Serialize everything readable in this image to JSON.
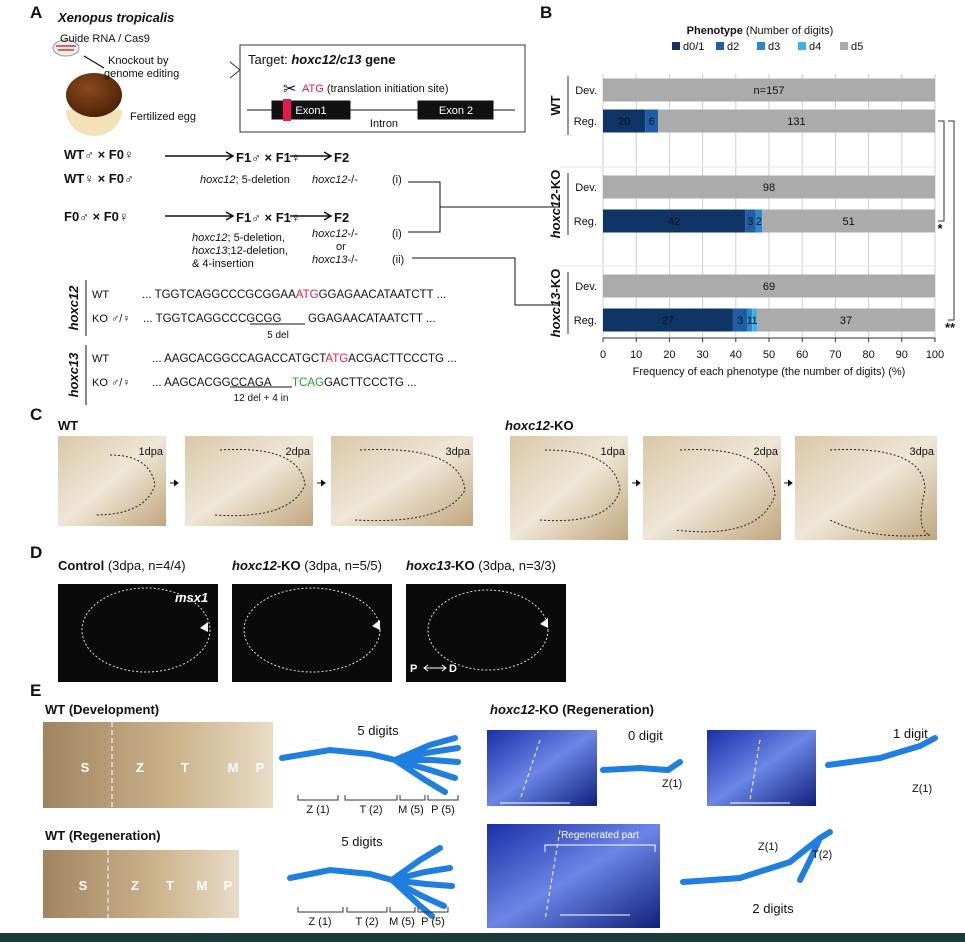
{
  "panel_labels": [
    "A",
    "B",
    "C",
    "D",
    "E"
  ],
  "panel_a": {
    "species": "Xenopus tropicalis",
    "guide": "Guide RNA / Cas9",
    "knockout": [
      "Knockout by",
      "genome editing"
    ],
    "egg": "Fertilized egg",
    "target_prefix": "Target: ",
    "target_gene": "hoxc12/c13",
    "target_suffix": " gene",
    "atg": "ATG",
    "atg_note": " (translation initiation site)",
    "exon1": "Exon1",
    "intron": "Intron",
    "exon2": "Exon 2",
    "cross1": "WT♂ × F0♀",
    "cross2": "WT♀ × F0♂",
    "cross3": "F0♂ × F0♀",
    "f1": "F1♂ × F1♀",
    "f2": "F2",
    "f1_note1": [
      "hoxc12",
      "; 5-deletion"
    ],
    "f2_note1": [
      "hoxc12",
      "-/-"
    ],
    "mark_i": "(i)",
    "f1_note3": [
      [
        "hoxc12",
        "; 5-deletion,"
      ],
      [
        "hoxc13",
        ";12-deletion,"
      ],
      [
        "& 4-insertion"
      ]
    ],
    "f2_note3": [
      [
        "hoxc12",
        "-/-"
      ],
      [
        "or"
      ],
      [
        "hoxc13",
        "-/-"
      ]
    ],
    "mark_ii": "(ii)",
    "hoxc12": {
      "gene": "hoxc12",
      "wt": "WT",
      "ko": "KO ♂/♀",
      "wt_seq": [
        "... TGGTCAGGCCCGCGGAA",
        "ATG",
        "GGAGAACATAATCTT ..."
      ],
      "ko_seq": [
        "... TGGTCAGGCCCGCGG",
        "GGAGAACATAATCTT ..."
      ],
      "note": "5 del"
    },
    "hoxc13": {
      "gene": "hoxc13",
      "wt": "WT",
      "ko": "KO ♂/♀",
      "wt_seq": [
        "... AAGCACGGCCAGACCATGCT",
        "ATG",
        "ACGACTTCCCTG ..."
      ],
      "ko_seq": [
        "... AAGCACGGCCAGA",
        "TCAG",
        "GACTTCCCTG ..."
      ],
      "note": "12 del + 4 in"
    }
  },
  "chart_data": {
    "type": "bar",
    "orientation": "horizontal",
    "stacking": "percent",
    "legend_title": "Phenotype",
    "legend_subtitle": " (Number of digits)",
    "groups": [
      [
        "WT"
      ],
      [
        "hoxc12",
        "-KO"
      ],
      [
        "hoxc13",
        "-KO"
      ]
    ],
    "categories": [
      "Dev.",
      "Reg.",
      "Dev.",
      "Reg.",
      "Dev.",
      "Reg."
    ],
    "series": [
      {
        "name": "d0/1",
        "color": "#0f3567",
        "values": [
          null,
          20,
          null,
          42,
          null,
          27
        ]
      },
      {
        "name": "d2",
        "color": "#1d5ea6",
        "values": [
          null,
          6,
          null,
          3,
          null,
          3
        ]
      },
      {
        "name": "d3",
        "color": "#2a86cf",
        "values": [
          null,
          null,
          null,
          2,
          null,
          1
        ]
      },
      {
        "name": "d4",
        "color": "#3cb2ea",
        "values": [
          null,
          null,
          null,
          null,
          null,
          1
        ]
      },
      {
        "name": "d5",
        "color": "#ababab",
        "values": [
          157,
          131,
          98,
          51,
          69,
          37
        ],
        "value_labels": [
          "n=157",
          "131",
          "98",
          "51",
          "69",
          "37"
        ]
      }
    ],
    "significance": [
      "*",
      "**"
    ],
    "xlabel": "Frequency of each phenotype (the number of digits) (%)",
    "xlim": [
      0,
      100
    ],
    "xticks": [
      0,
      10,
      20,
      30,
      40,
      50,
      60,
      70,
      80,
      90,
      100
    ],
    "grid": true
  },
  "panel_c": {
    "wt": "WT",
    "ko": [
      "hoxc12",
      "-KO"
    ],
    "dpa": [
      "1dpa",
      "2dpa",
      "3dpa"
    ]
  },
  "panel_d": {
    "titles": [
      [
        "Control",
        " (3dpa, n=4/4)"
      ],
      [
        "hoxc12",
        "-KO",
        " (3dpa, n=5/5)"
      ],
      [
        "hoxc13",
        "-KO",
        " (3dpa, n=3/3)"
      ]
    ],
    "gene": "msx1",
    "p": "P",
    "d": "D"
  },
  "panel_e": {
    "wt_dev": "WT (Development)",
    "wt_reg": "WT (Regeneration)",
    "ko_reg": [
      "hoxc12",
      "-KO (Regeneration)"
    ],
    "zones": [
      "S",
      "Z",
      "T",
      "M",
      "P"
    ],
    "five_digits": "5 digits",
    "segments": [
      "Z (1)",
      "T (2)",
      "M (5)",
      "P (5)"
    ],
    "zero_digit": "0 digit",
    "one_digit": "1 digit",
    "two_digits": "2 digits",
    "z1": "Z(1)",
    "t2": "T(2)",
    "regenerated": "Regenerated part"
  }
}
